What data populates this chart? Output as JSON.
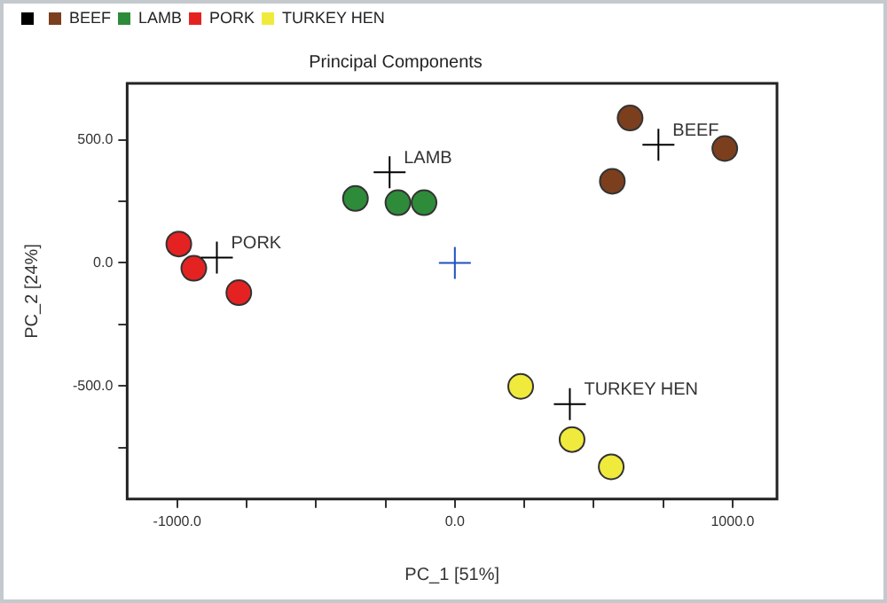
{
  "chart_data": {
    "type": "scatter",
    "title": "Principal Components",
    "xlabel": "PC_1 [51%]",
    "ylabel": "PC_2 [24%]",
    "xlim": [
      -1180,
      1160
    ],
    "ylim": [
      -960,
      730
    ],
    "xticks": [
      {
        "value": -1000,
        "label": "-1000.0"
      },
      {
        "value": -750,
        "label": null
      },
      {
        "value": -500,
        "label": null
      },
      {
        "value": -250,
        "label": null
      },
      {
        "value": 0,
        "label": "0.0"
      },
      {
        "value": 250,
        "label": null
      },
      {
        "value": 500,
        "label": null
      },
      {
        "value": 750,
        "label": null
      },
      {
        "value": 1000,
        "label": "1000.0"
      }
    ],
    "yticks": [
      {
        "value": -750,
        "label": null
      },
      {
        "value": -500,
        "label": "-500.0"
      },
      {
        "value": -250,
        "label": null
      },
      {
        "value": 0,
        "label": "0.0"
      },
      {
        "value": 250,
        "label": null
      },
      {
        "value": 500,
        "label": "500.0"
      }
    ],
    "grid": false,
    "legend": "top left",
    "marker": "circle",
    "series": [
      {
        "type": "scatter",
        "marker": "cross",
        "colors": [
          "#000000",
          "#000000",
          "#000000",
          "#000000",
          "#1f4fbf"
        ],
        "color": "#000000",
        "x": [
          733,
          -235,
          -857,
          414,
          0
        ],
        "values": [
          480,
          369,
          22,
          -574,
          0
        ]
      },
      {
        "name": "BEEF",
        "color": "#7b3f1e",
        "x": [
          631,
          567,
          972
        ],
        "values": [
          589,
          332,
          465
        ]
      },
      {
        "name": "LAMB",
        "color": "#2e8b3a",
        "x": [
          -358,
          -205,
          -111
        ],
        "values": [
          262,
          245,
          245
        ]
      },
      {
        "name": "PORK",
        "color": "#e52222",
        "x": [
          -994,
          -940,
          -778
        ],
        "values": [
          77,
          -22,
          -121
        ]
      },
      {
        "name": "TURKEY HEN",
        "color": "#f0ea3c",
        "x": [
          237,
          422,
          563
        ],
        "values": [
          -502,
          -718,
          -829
        ]
      }
    ],
    "annotations": [
      {
        "text": "BEEF",
        "x": 733,
        "y": 480
      },
      {
        "text": "LAMB",
        "x": -235,
        "y": 369
      },
      {
        "text": "PORK",
        "x": -857,
        "y": 22
      },
      {
        "text": "TURKEY HEN",
        "x": 414,
        "y": -574
      }
    ]
  }
}
